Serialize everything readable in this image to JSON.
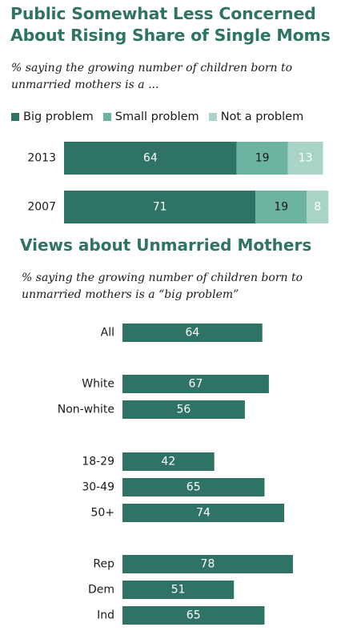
{
  "title": "Public Somewhat Less Concerned About Rising Share of Single Moms",
  "subtitle": "% saying the growing number of children born to unmarried mothers is a ...",
  "colors": {
    "accent": "#2e7363",
    "big_problem": "#2e7363",
    "small_problem": "#6db3a2",
    "not_a_problem": "#a9d4c8"
  },
  "chart_data": [
    {
      "type": "bar",
      "stacked": true,
      "orientation": "horizontal",
      "categories": [
        "2013",
        "2007"
      ],
      "series": [
        {
          "name": "Big problem",
          "values": [
            64,
            71
          ],
          "color": "#2e7363"
        },
        {
          "name": "Small problem",
          "values": [
            19,
            19
          ],
          "color": "#6db3a2"
        },
        {
          "name": "Not a problem",
          "values": [
            13,
            8
          ],
          "color": "#a9d4c8"
        }
      ],
      "legend": "top"
    },
    {
      "type": "bar",
      "orientation": "horizontal",
      "title": "Views about Unmarried Mothers",
      "subtitle": "% saying the growing number of children born to unmarried mothers is a “big problem”",
      "categories": [
        "All",
        "White",
        "Non-white",
        "18-29",
        "30-49",
        "50+",
        "Rep",
        "Dem",
        "Ind"
      ],
      "values": [
        64,
        67,
        56,
        42,
        65,
        74,
        78,
        51,
        65
      ],
      "color": "#2e7363"
    }
  ]
}
